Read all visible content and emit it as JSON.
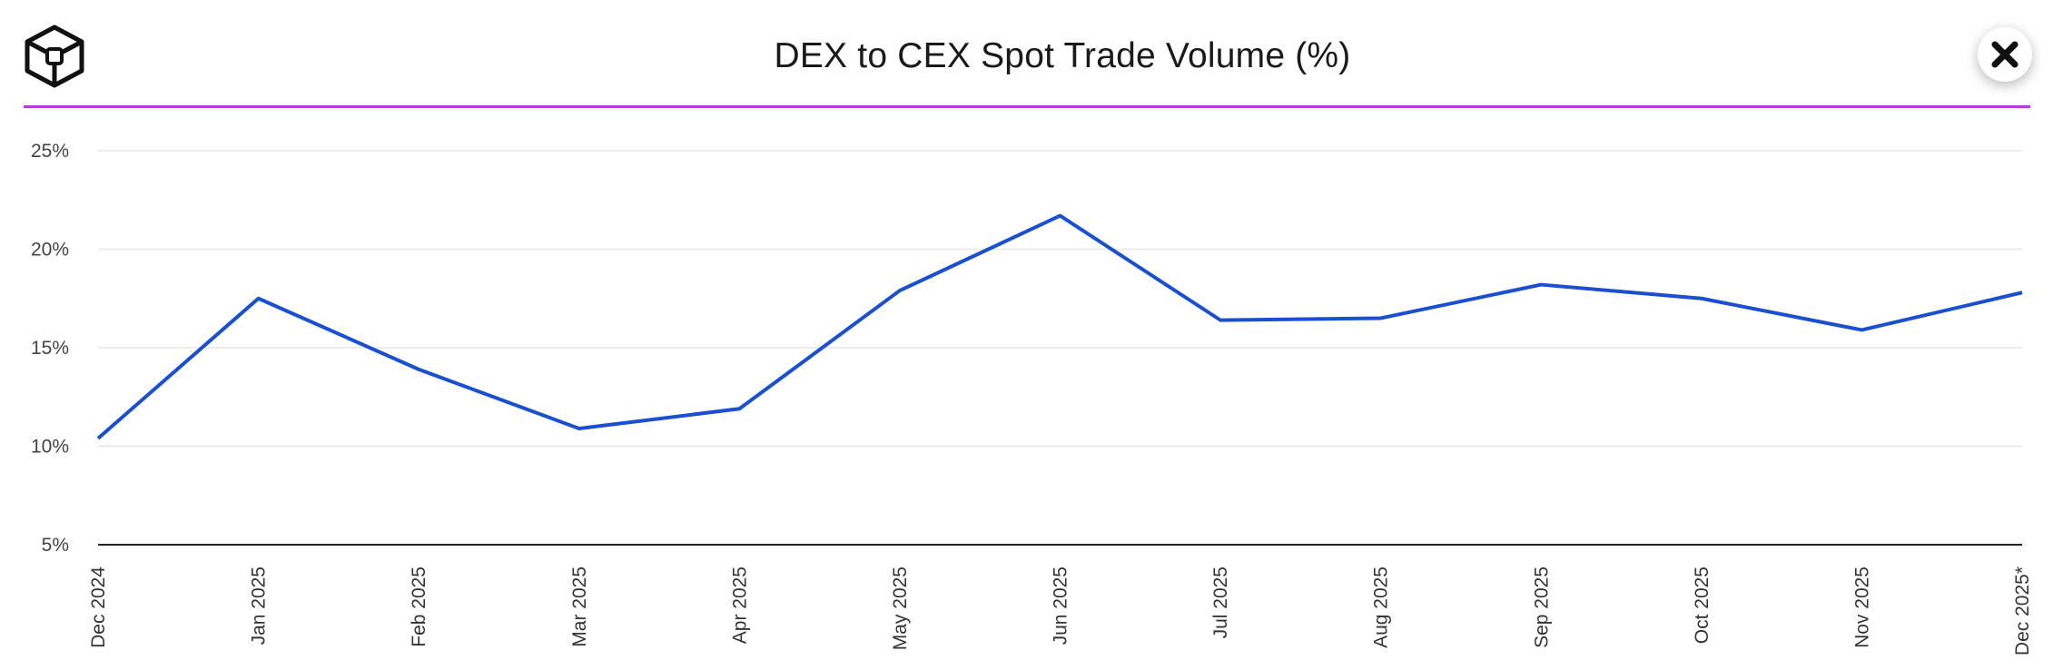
{
  "header": {
    "title": "DEX to CEX Spot Trade Volume (%)",
    "logo_icon": "cube-logo-icon",
    "close_icon": "close-icon"
  },
  "colors": {
    "accent_line": "#b83bdc",
    "series_line": "#1a4fd0",
    "gridline": "#e6e6e6",
    "axis": "#222222"
  },
  "chart_data": {
    "type": "line",
    "title": "DEX to CEX Spot Trade Volume (%)",
    "xlabel": "",
    "ylabel": "",
    "ylim": [
      5,
      25
    ],
    "yticks": [
      5,
      10,
      15,
      20,
      25
    ],
    "ytick_labels": [
      "5%",
      "10%",
      "15%",
      "20%",
      "25%"
    ],
    "grid": true,
    "categories": [
      "Dec 2024",
      "Jan 2025",
      "Feb 2025",
      "Mar 2025",
      "Apr 2025",
      "May 2025",
      "Jun 2025",
      "Jul 2025",
      "Aug 2025",
      "Sep 2025",
      "Oct 2025",
      "Nov 2025",
      "Dec 2025*"
    ],
    "series": [
      {
        "name": "DEX to CEX Spot Trade Volume",
        "values": [
          10.4,
          17.5,
          13.9,
          10.9,
          11.9,
          17.9,
          21.7,
          16.4,
          16.5,
          18.2,
          17.5,
          15.9,
          17.8
        ]
      }
    ]
  }
}
